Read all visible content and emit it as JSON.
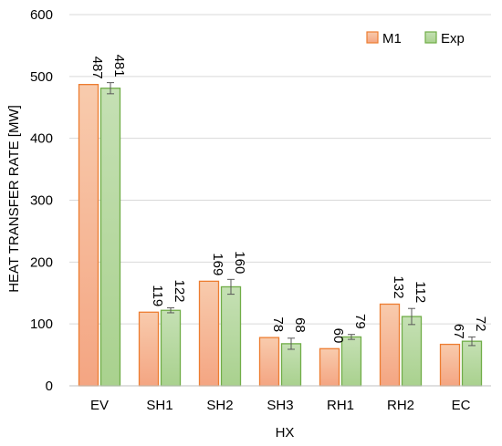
{
  "chart_data": {
    "type": "bar",
    "categories": [
      "EV",
      "SH1",
      "SH2",
      "SH3",
      "RH1",
      "RH2",
      "EC"
    ],
    "series": [
      {
        "name": "M1",
        "values": [
          487,
          119,
          169,
          78,
          60,
          132,
          67
        ],
        "color": "#f4a582"
      },
      {
        "name": "Exp",
        "values": [
          481,
          122,
          160,
          68,
          79,
          112,
          72
        ],
        "errors": [
          9,
          4,
          12,
          9,
          4,
          13,
          7
        ],
        "color": "#a9d18e"
      }
    ],
    "title": "",
    "xlabel": "HX",
    "ylabel": "HEAT TRANSFER RATE [MW]",
    "ylim": [
      0,
      600
    ],
    "yticks": [
      0,
      100,
      200,
      300,
      400,
      500,
      600
    ],
    "grid": true,
    "legend": "top-right",
    "colors": {
      "m1_edge": "#ed7d31",
      "m1_top": "#f8cbad",
      "m1_bottom": "#f4a582",
      "exp_edge": "#70ad47",
      "exp_top": "#c5e0b4",
      "exp_bottom": "#a9d18e"
    }
  }
}
